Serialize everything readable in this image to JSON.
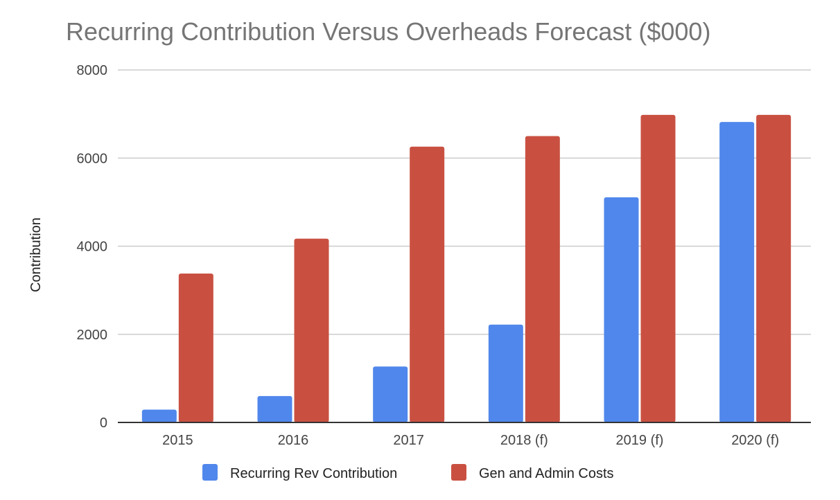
{
  "chart_data": {
    "type": "bar",
    "title": "Recurring Contribution Versus Overheads Forecast ($000)",
    "xlabel": "",
    "ylabel": "Contribution",
    "ylim": [
      0,
      8000
    ],
    "yticks": [
      0,
      2000,
      4000,
      6000,
      8000
    ],
    "ytick_labels": [
      "0",
      "2000",
      "4000",
      "6000",
      "8000"
    ],
    "grid": true,
    "legend_position": "bottom",
    "categories": [
      "2015",
      "2016",
      "2017",
      "2018 (f)",
      "2019 (f)",
      "2020 (f)"
    ],
    "series": [
      {
        "name": "Recurring Rev Contribution",
        "color": "#5087EC",
        "values": [
          290,
          600,
          1270,
          2220,
          5110,
          6820
        ]
      },
      {
        "name": "Gen and Admin Costs",
        "color": "#C95041",
        "values": [
          3380,
          4170,
          6260,
          6500,
          6980,
          6980
        ]
      }
    ]
  }
}
